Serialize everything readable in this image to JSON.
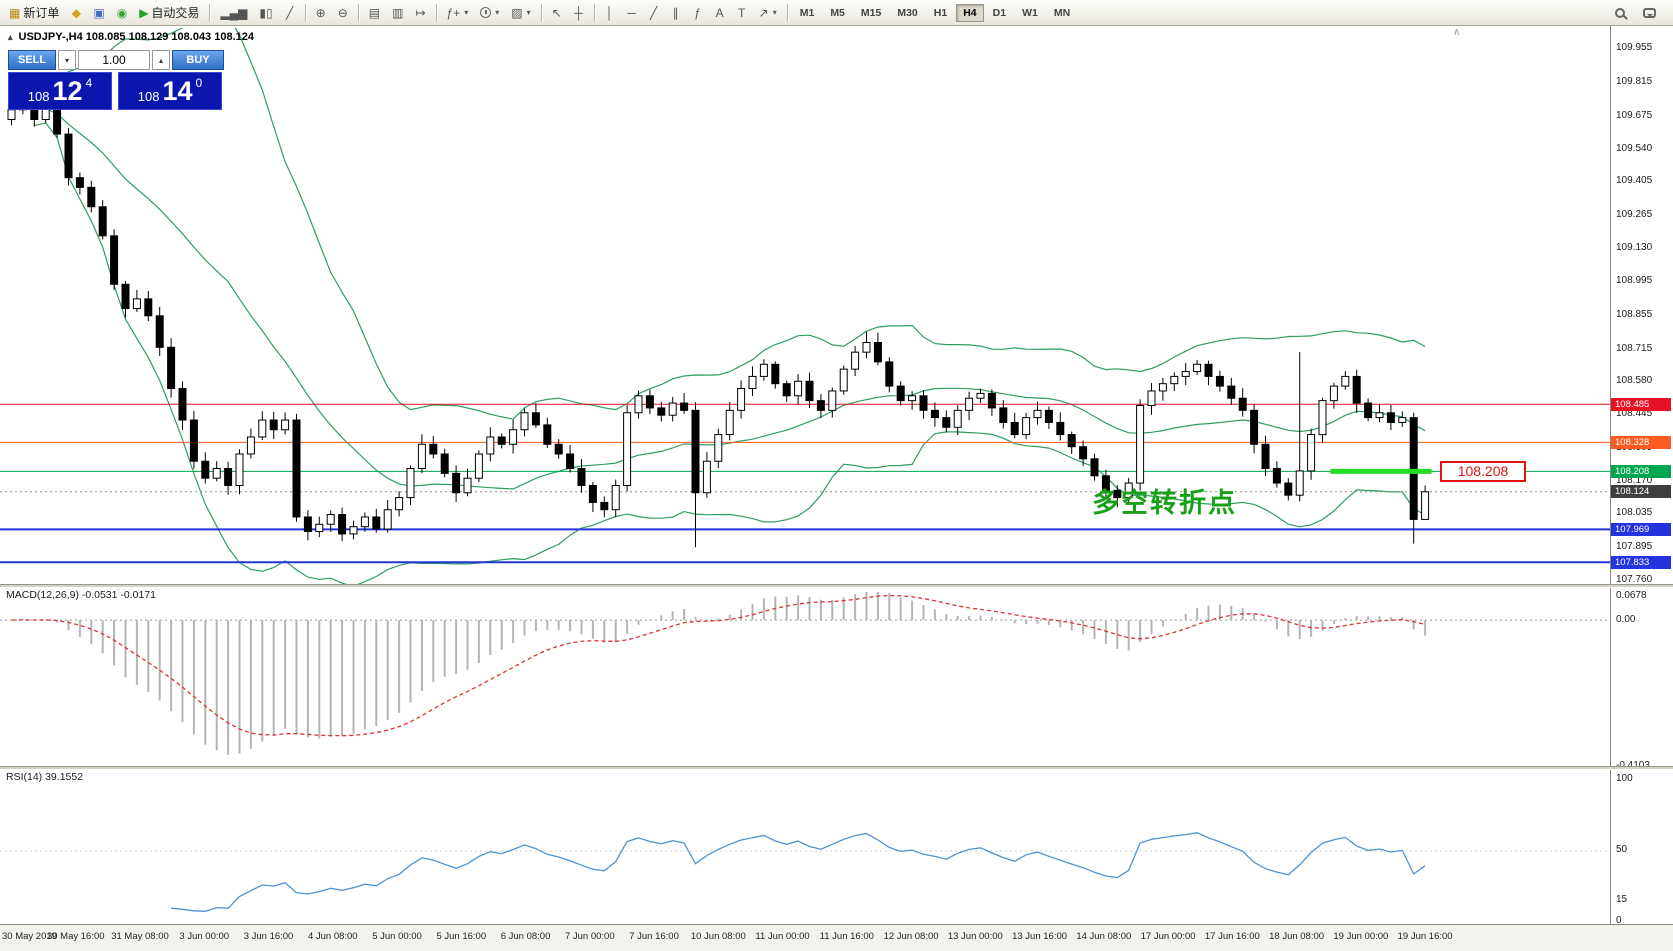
{
  "toolbar": {
    "items": [
      {
        "name": "new-order-button",
        "glyph": "▦",
        "color": "#b8860b",
        "label": "新订单"
      },
      {
        "name": "market-watch-button",
        "glyph": "◆",
        "color": "#d4a017"
      },
      {
        "name": "navigator-button",
        "glyph": "▣",
        "color": "#3f6fbf"
      },
      {
        "name": "terminal-button",
        "glyph": "◉",
        "color": "#3a9e3a"
      },
      {
        "name": "auto-trading-button",
        "glyph": "▶",
        "color": "#21a121",
        "label": "自动交易"
      },
      {
        "sep": true
      },
      {
        "name": "chart-bars-button",
        "glyph": "▂▄▆"
      },
      {
        "name": "chart-candles-button",
        "glyph": "▮▯"
      },
      {
        "name": "chart-line-button",
        "glyph": "╱"
      },
      {
        "sep": true
      },
      {
        "name": "zoom-in-button",
        "glyph": "⊕"
      },
      {
        "name": "zoom-out-button",
        "glyph": "⊖"
      },
      {
        "sep": true
      },
      {
        "name": "tile-windows-button",
        "glyph": "▤"
      },
      {
        "name": "chart-shift-button",
        "glyph": "▥"
      },
      {
        "name": "auto-scroll-button",
        "glyph": "↦"
      },
      {
        "sep": true
      },
      {
        "name": "indicators-button",
        "glyph": "ƒ+",
        "dd": true
      },
      {
        "name": "periods-button",
        "cls": "icon-clock",
        "dd": true
      },
      {
        "name": "templates-button",
        "glyph": "▨",
        "dd": true
      },
      {
        "sep": true
      },
      {
        "name": "cursor-button",
        "glyph": "↖"
      },
      {
        "name": "crosshair-button",
        "glyph": "┼"
      },
      {
        "sep": true
      },
      {
        "name": "vertical-line-button",
        "glyph": "│"
      },
      {
        "name": "horizontal-line-button",
        "glyph": "─"
      },
      {
        "name": "trendline-button",
        "glyph": "╱"
      },
      {
        "name": "channel-button",
        "glyph": "∥"
      },
      {
        "name": "fibonacci-button",
        "glyph": "ƒ"
      },
      {
        "name": "text-button",
        "glyph": "A"
      },
      {
        "name": "label-button",
        "glyph": "T"
      },
      {
        "name": "arrows-button",
        "glyph": "↗",
        "dd": true
      },
      {
        "sep": true
      }
    ],
    "timeframes": [
      "M1",
      "M5",
      "M15",
      "M30",
      "H1",
      "H4",
      "D1",
      "W1",
      "MN"
    ],
    "active_timeframe": "H4",
    "right_items": [
      {
        "name": "search-button",
        "cls": "icon-mag"
      },
      {
        "name": "community-button",
        "cls": "icon-bubble"
      }
    ]
  },
  "chart": {
    "symbol_line": "USDJPY-,H4  108.085 108.129 108.043 108.124",
    "collapse_glyph": "▴",
    "scroll_marker": "∧",
    "annotation": "多空转折点",
    "highlight_label": "108.208"
  },
  "one_click": {
    "sell_label": "SELL",
    "buy_label": "BUY",
    "lot": "1.00",
    "dropdown_glyph": "▾",
    "spinner_up_glyph": "▴",
    "sell_prefix": "108",
    "sell_big": "12",
    "sell_sup": "4",
    "buy_prefix": "108",
    "buy_big": "14",
    "buy_sup": "0"
  },
  "price_scale": {
    "labels": [
      "109.955",
      "109.815",
      "109.675",
      "109.540",
      "109.405",
      "109.265",
      "109.130",
      "108.995",
      "108.855",
      "108.715",
      "108.580",
      "108.445",
      "108.305",
      "108.170",
      "108.035",
      "107.895",
      "107.760"
    ],
    "tags": [
      {
        "text": "108.485",
        "color": "#e81123"
      },
      {
        "text": "108.328",
        "color": "#ff5a1f"
      },
      {
        "text": "108.208",
        "color": "#00a651"
      },
      {
        "text": "108.124",
        "color": "#3f3f3f"
      },
      {
        "text": "107.969",
        "color": "#2333e0"
      },
      {
        "text": "107.833",
        "color": "#2333e0"
      }
    ]
  },
  "macd": {
    "header": "MACD(12,26,9) -0.0531 -0.0171",
    "scale": [
      "0.0678",
      "0.00",
      "-0.4103"
    ]
  },
  "rsi": {
    "header": "RSI(14) 39.1552",
    "scale": [
      "100",
      "50",
      "15",
      "0"
    ]
  },
  "time_axis": [
    "30 May 2019",
    "30 May 16:00",
    "31 May 08:00",
    "3 Jun 00:00",
    "3 Jun 16:00",
    "4 Jun 08:00",
    "5 Jun 00:00",
    "5 Jun 16:00",
    "6 Jun 08:00",
    "7 Jun 00:00",
    "7 Jun 16:00",
    "10 Jun 08:00",
    "11 Jun 00:00",
    "11 Jun 16:00",
    "12 Jun 08:00",
    "13 Jun 00:00",
    "13 Jun 16:00",
    "14 Jun 08:00",
    "17 Jun 00:00",
    "17 Jun 16:00",
    "18 Jun 08:00",
    "19 Jun 00:00",
    "19 Jun 16:00"
  ],
  "chart_data": {
    "type": "candlestick",
    "symbol": "USDJPY-",
    "timeframe": "H4",
    "ohlc_display": {
      "open": "108.085",
      "high": "108.129",
      "low": "108.043",
      "close": "108.124"
    },
    "price_range_top": 109.955,
    "price_range_bottom": 107.76,
    "first_open": 109.66,
    "closes": [
      109.7,
      109.74,
      109.66,
      109.72,
      109.6,
      109.42,
      109.38,
      109.3,
      109.18,
      108.98,
      108.88,
      108.92,
      108.85,
      108.72,
      108.55,
      108.42,
      108.25,
      108.18,
      108.22,
      108.15,
      108.28,
      108.35,
      108.42,
      108.38,
      108.42,
      108.02,
      107.96,
      107.99,
      108.03,
      107.95,
      107.98,
      108.02,
      107.97,
      108.05,
      108.1,
      108.22,
      108.32,
      108.28,
      108.2,
      108.12,
      108.18,
      108.28,
      108.35,
      108.32,
      108.38,
      108.45,
      108.4,
      108.32,
      108.28,
      108.22,
      108.15,
      108.08,
      108.05,
      108.15,
      108.45,
      108.52,
      108.47,
      108.44,
      108.49,
      108.46,
      108.12,
      108.25,
      108.36,
      108.46,
      108.55,
      108.6,
      108.65,
      108.57,
      108.52,
      108.58,
      108.5,
      108.46,
      108.54,
      108.63,
      108.7,
      108.74,
      108.66,
      108.56,
      108.5,
      108.52,
      108.46,
      108.43,
      108.39,
      108.46,
      108.51,
      108.53,
      108.47,
      108.41,
      108.36,
      108.43,
      108.46,
      108.41,
      108.36,
      108.31,
      108.26,
      108.19,
      108.13,
      108.1,
      108.16,
      108.48,
      108.54,
      108.57,
      108.6,
      108.62,
      108.65,
      108.6,
      108.56,
      108.51,
      108.46,
      108.32,
      108.22,
      108.16,
      108.11,
      108.21,
      108.36,
      108.5,
      108.56,
      108.6,
      108.49,
      108.43,
      108.45,
      108.41,
      108.43,
      108.01,
      108.124
    ],
    "wick_overrides": {
      "60": {
        "low": 107.895
      },
      "75": {
        "high": 108.785
      },
      "113": {
        "high": 108.7
      },
      "123": {
        "low": 107.91
      },
      "124": {
        "low": 108.03
      }
    },
    "bollinger": {
      "period": 20,
      "deviation": 2,
      "color": "#2e9e5e"
    },
    "hlines": [
      {
        "price": 108.485,
        "color": "#e81123",
        "width": 1
      },
      {
        "price": 108.328,
        "color": "#ff5a1f",
        "width": 1
      },
      {
        "price": 108.208,
        "color": "#00a651",
        "width": 1
      },
      {
        "price": 107.969,
        "color": "#2333e0",
        "width": 2
      },
      {
        "price": 107.833,
        "color": "#2333e0",
        "width": 2
      }
    ],
    "current_price": {
      "price": 108.124,
      "line_color": "#8a8a8a",
      "tag_bg": "#3f3f3f"
    },
    "highlight": {
      "price": 108.208,
      "start_index": 116,
      "end_index": 124,
      "color": "#22dd22",
      "width": 5,
      "label": "108.208"
    },
    "macd": {
      "fast": 12,
      "slow": 26,
      "signal": 9,
      "ylim": [
        -0.4103,
        0.0678
      ],
      "hist_color": "#b4b4b4",
      "signal_color": "#e03131"
    },
    "rsi": {
      "period": 14,
      "color": "#4f93d2",
      "level": 50
    }
  }
}
